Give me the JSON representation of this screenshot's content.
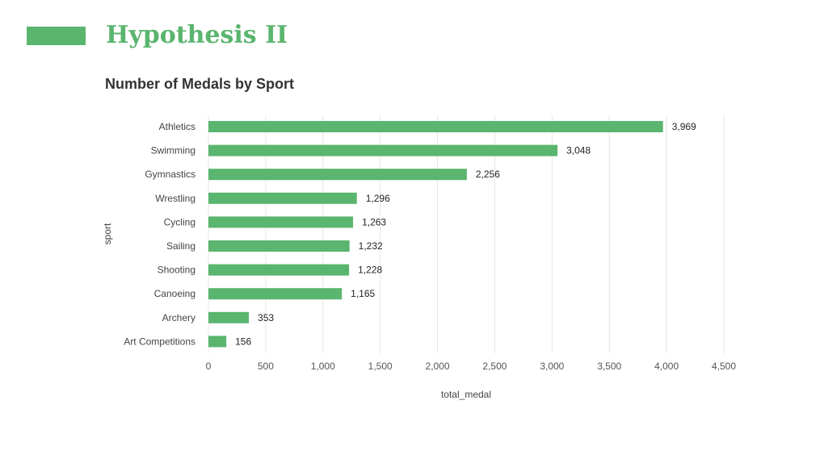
{
  "slide": {
    "title": "Hypothesis II",
    "accent_color": "#5ab56e"
  },
  "chart_data": {
    "type": "bar",
    "orientation": "horizontal",
    "title": "Number of Medals by Sport",
    "xlabel": "total_medal",
    "ylabel": "sport",
    "categories": [
      "Athletics",
      "Swimming",
      "Gymnastics",
      "Wrestling",
      "Cycling",
      "Sailing",
      "Shooting",
      "Canoeing",
      "Archery",
      "Art Competitions"
    ],
    "values": [
      3969,
      3048,
      2256,
      1296,
      1263,
      1232,
      1228,
      1165,
      353,
      156
    ],
    "value_labels": [
      "3,969",
      "3,048",
      "2,256",
      "1,296",
      "1,263",
      "1,232",
      "1,228",
      "1,165",
      "353",
      "156"
    ],
    "xlim": [
      0,
      4500
    ],
    "xticks": [
      0,
      500,
      1000,
      1500,
      2000,
      2500,
      3000,
      3500,
      4000,
      4500
    ],
    "xtick_labels": [
      "0",
      "500",
      "1,000",
      "1,500",
      "2,000",
      "2,500",
      "3,000",
      "3,500",
      "4,000",
      "4,500"
    ],
    "grid": true,
    "bar_color": "#5ab56e"
  }
}
